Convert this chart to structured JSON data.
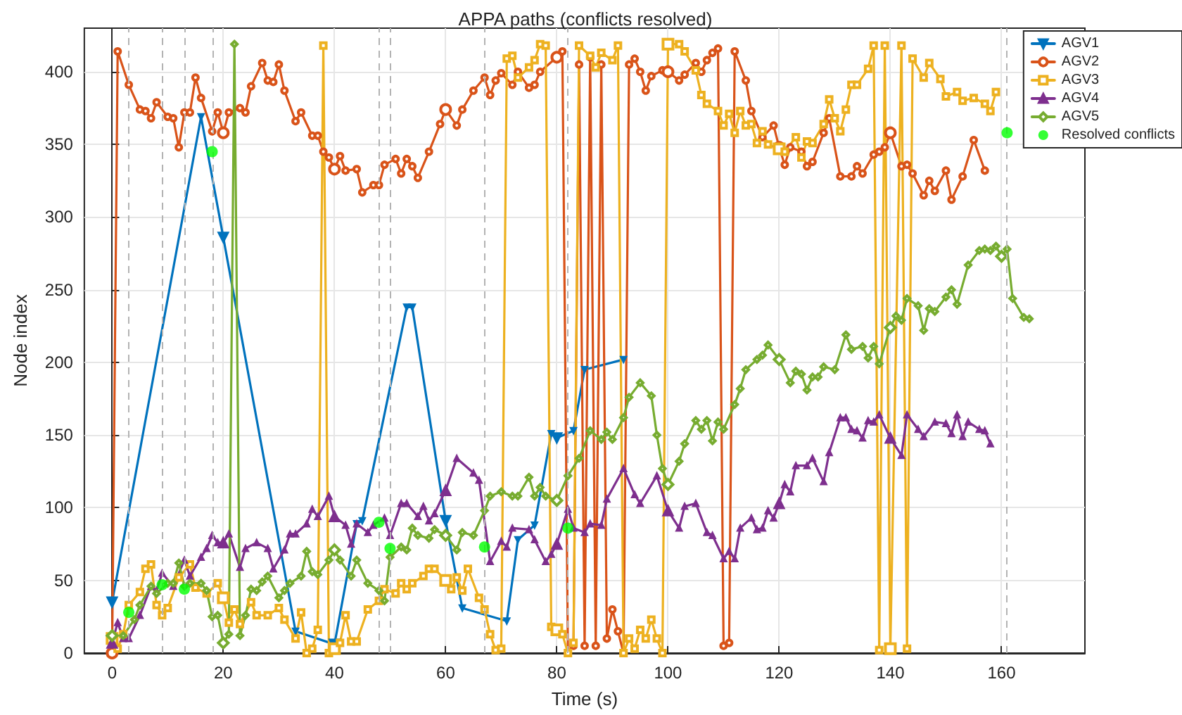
{
  "chart_data": {
    "type": "line",
    "title": "APPA paths (conflicts resolved)",
    "xlabel": "Time (s)",
    "ylabel": "Node index",
    "xlim": [
      -5,
      175
    ],
    "xticks": [
      0,
      20,
      40,
      60,
      80,
      100,
      120,
      140,
      160
    ],
    "ylim": [
      0,
      430
    ],
    "yticks": [
      0,
      50,
      100,
      150,
      200,
      250,
      300,
      350,
      400
    ],
    "grid": true,
    "legend": "top right",
    "line_style": "solid",
    "series": [
      {
        "name": "AGV1",
        "color": "#0072bd",
        "marker": "triangle-down",
        "x": [
          0,
          16,
          20,
          33,
          40,
          44,
          45,
          53,
          54,
          60,
          63,
          71,
          73,
          76,
          79,
          80,
          83,
          85,
          92
        ],
        "values": [
          35,
          369,
          286,
          15,
          6,
          89,
          91,
          238,
          238,
          91,
          31,
          22,
          78,
          88,
          151,
          148,
          153,
          195,
          202
        ]
      },
      {
        "name": "AGV2",
        "color": "#d95319",
        "marker": "circle",
        "x": [
          0,
          1,
          3,
          5,
          6,
          7,
          8,
          10,
          11,
          12,
          13,
          14,
          15,
          16,
          18,
          19,
          20,
          21,
          23,
          24,
          25,
          27,
          28,
          29,
          30,
          31,
          33,
          34,
          36,
          37,
          38,
          39,
          40,
          41,
          42,
          44,
          45,
          47,
          48,
          49,
          51,
          52,
          53,
          54,
          55,
          57,
          59,
          60,
          62,
          63,
          65,
          67,
          68,
          69,
          70,
          72,
          73,
          75,
          76,
          77,
          80,
          81,
          82,
          83,
          84,
          85,
          86,
          87,
          88,
          89,
          90,
          91,
          92,
          93,
          94,
          95,
          96,
          97,
          99,
          100,
          102,
          103,
          105,
          106,
          107,
          108,
          109,
          110,
          111,
          112,
          114,
          115,
          117,
          119,
          120,
          121,
          122,
          124,
          125,
          126,
          128,
          129,
          131,
          133,
          134,
          135,
          137,
          138,
          139,
          140,
          142,
          143,
          144,
          146,
          147,
          148,
          150,
          151,
          153,
          155,
          157
        ],
        "values": [
          0,
          414,
          391,
          374,
          373,
          368,
          379,
          369,
          368,
          348,
          372,
          372,
          396,
          382,
          359,
          372,
          358,
          372,
          375,
          372,
          390,
          406,
          394,
          393,
          405,
          387,
          366,
          372,
          356,
          356,
          345,
          341,
          333,
          342,
          332,
          333,
          317,
          322,
          322,
          336,
          340,
          330,
          340,
          335,
          327,
          345,
          364,
          374,
          363,
          374,
          387,
          396,
          384,
          394,
          399,
          391,
          400,
          389,
          391,
          400,
          410,
          414,
          0,
          5,
          405,
          5,
          410,
          5,
          405,
          10,
          30,
          15,
          0,
          405,
          409,
          400,
          387,
          397,
          401,
          400,
          394,
          398,
          406,
          400,
          408,
          413,
          416,
          5,
          7,
          414,
          394,
          373,
          355,
          363,
          348,
          336,
          348,
          345,
          335,
          338,
          358,
          368,
          328,
          328,
          335,
          330,
          343,
          345,
          348,
          358,
          335,
          336,
          330,
          315,
          325,
          318,
          332,
          312,
          328,
          353,
          332
        ]
      },
      {
        "name": "AGV3",
        "color": "#edb120",
        "marker": "square",
        "x": [
          0,
          1,
          2,
          3,
          5,
          6,
          7,
          8,
          9,
          10,
          12,
          14,
          15,
          17,
          19,
          20,
          21,
          22,
          23,
          25,
          26,
          28,
          30,
          31,
          33,
          34,
          35,
          36,
          37,
          38,
          39,
          40,
          41,
          42,
          43,
          44,
          46,
          48,
          49,
          51,
          52,
          53,
          54,
          56,
          57,
          58,
          60,
          61,
          62,
          63,
          64,
          66,
          67,
          68,
          69,
          70,
          71,
          72,
          73,
          75,
          76,
          77,
          78,
          79,
          80,
          81,
          82,
          83,
          84,
          86,
          87,
          88,
          90,
          91,
          92,
          93,
          94,
          95,
          96,
          97,
          98,
          99,
          100,
          102,
          103,
          105,
          106,
          107,
          109,
          110,
          111,
          112,
          113,
          114,
          115,
          116,
          117,
          118,
          120,
          121,
          123,
          124,
          125,
          126,
          128,
          129,
          130,
          131,
          132,
          133,
          134,
          136,
          137,
          138,
          139,
          140,
          142,
          143,
          144,
          146,
          147,
          149,
          150,
          152,
          153,
          155,
          157,
          158,
          159
        ],
        "values": [
          10,
          3,
          13,
          33,
          42,
          58,
          61,
          33,
          26,
          31,
          52,
          61,
          45,
          41,
          48,
          38,
          21,
          30,
          20,
          35,
          26,
          26,
          31,
          23,
          10,
          28,
          0,
          3,
          16,
          418,
          0,
          3,
          7,
          26,
          8,
          8,
          30,
          36,
          44,
          41,
          48,
          44,
          48,
          53,
          58,
          58,
          50,
          44,
          52,
          43,
          58,
          38,
          30,
          13,
          2,
          3,
          409,
          411,
          396,
          403,
          408,
          419,
          418,
          18,
          16,
          13,
          0,
          7,
          418,
          411,
          403,
          413,
          408,
          418,
          0,
          10,
          3,
          16,
          10,
          23,
          10,
          0,
          419,
          419,
          414,
          401,
          384,
          378,
          373,
          363,
          371,
          358,
          373,
          363,
          364,
          351,
          359,
          350,
          347,
          345,
          355,
          341,
          352,
          351,
          364,
          381,
          368,
          359,
          374,
          391,
          391,
          402,
          418,
          2,
          418,
          3,
          418,
          3,
          409,
          396,
          406,
          395,
          383,
          386,
          380,
          382,
          378,
          373,
          386
        ]
      },
      {
        "name": "AGV4",
        "color": "#7e2f8e",
        "marker": "triangle",
        "x": [
          0,
          1,
          2,
          3,
          5,
          7,
          8,
          9,
          11,
          13,
          14,
          16,
          17,
          18,
          19,
          20,
          21,
          23,
          24,
          26,
          28,
          29,
          31,
          32,
          33,
          35,
          36,
          37,
          39,
          40,
          42,
          43,
          44,
          46,
          47,
          49,
          50,
          52,
          53,
          55,
          56,
          57,
          58,
          60,
          62,
          65,
          66,
          68,
          70,
          71,
          72,
          75,
          76,
          78,
          79,
          80,
          82,
          83,
          85,
          86,
          88,
          89,
          92,
          94,
          95,
          98,
          100,
          102,
          103,
          105,
          107,
          108,
          110,
          111,
          112,
          113,
          115,
          116,
          117,
          118,
          119,
          120,
          121,
          122,
          123,
          125,
          126,
          128,
          129,
          131,
          132,
          133,
          134,
          135,
          136,
          137,
          138,
          140,
          142,
          143,
          145,
          146,
          148,
          150,
          151,
          152,
          153,
          154,
          156,
          157,
          158
        ],
        "values": [
          7,
          21,
          10,
          10,
          26,
          46,
          43,
          55,
          46,
          64,
          53,
          66,
          72,
          81,
          76,
          76,
          82,
          59,
          72,
          76,
          72,
          58,
          71,
          82,
          82,
          89,
          99,
          94,
          108,
          94,
          88,
          75,
          89,
          83,
          88,
          93,
          81,
          103,
          103,
          94,
          101,
          91,
          96,
          112,
          134,
          124,
          119,
          63,
          77,
          73,
          86,
          85,
          78,
          63,
          68,
          75,
          99,
          86,
          83,
          89,
          88,
          106,
          127,
          109,
          103,
          122,
          98,
          86,
          101,
          103,
          83,
          81,
          65,
          70,
          65,
          86,
          93,
          85,
          86,
          98,
          93,
          103,
          116,
          111,
          129,
          129,
          134,
          118,
          138,
          162,
          162,
          154,
          153,
          148,
          160,
          159,
          164,
          148,
          136,
          164,
          154,
          149,
          159,
          158,
          151,
          164,
          149,
          159,
          154,
          153,
          144
        ]
      },
      {
        "name": "AGV5",
        "color": "#77ac30",
        "marker": "diamond",
        "x": [
          0,
          2,
          4,
          5,
          7,
          8,
          10,
          11,
          12,
          13,
          14,
          16,
          17,
          18,
          19,
          20,
          21,
          22,
          23,
          24,
          25,
          26,
          27,
          28,
          30,
          31,
          32,
          34,
          35,
          36,
          37,
          39,
          40,
          41,
          43,
          44,
          46,
          48,
          49,
          50,
          52,
          53,
          54,
          55,
          57,
          58,
          60,
          62,
          63,
          65,
          67,
          68,
          70,
          72,
          73,
          75,
          76,
          77,
          78,
          80,
          82,
          84,
          86,
          88,
          89,
          90,
          92,
          93,
          95,
          97,
          98,
          99,
          100,
          102,
          103,
          105,
          106,
          107,
          108,
          109,
          110,
          112,
          113,
          114,
          116,
          117,
          118,
          120,
          122,
          123,
          124,
          125,
          126,
          127,
          128,
          130,
          132,
          133,
          135,
          136,
          137,
          138,
          140,
          141,
          142,
          143,
          145,
          146,
          147,
          148,
          150,
          151,
          152,
          154,
          156,
          157,
          158,
          159,
          160,
          161,
          162,
          164,
          165
        ],
        "values": [
          12,
          12,
          23,
          33,
          46,
          41,
          48,
          48,
          62,
          46,
          48,
          48,
          43,
          25,
          26,
          7,
          13,
          419,
          12,
          26,
          44,
          43,
          49,
          53,
          38,
          43,
          48,
          53,
          70,
          56,
          54,
          64,
          71,
          64,
          53,
          64,
          48,
          43,
          36,
          66,
          73,
          71,
          86,
          81,
          79,
          85,
          81,
          71,
          83,
          81,
          98,
          108,
          111,
          108,
          108,
          121,
          108,
          114,
          108,
          105,
          122,
          134,
          153,
          147,
          152,
          147,
          162,
          176,
          186,
          177,
          150,
          127,
          116,
          132,
          144,
          160,
          154,
          160,
          146,
          159,
          154,
          171,
          182,
          195,
          202,
          205,
          212,
          202,
          186,
          194,
          192,
          181,
          190,
          190,
          197,
          195,
          219,
          209,
          211,
          203,
          211,
          199,
          224,
          232,
          229,
          244,
          239,
          222,
          237,
          235,
          245,
          250,
          240,
          267,
          277,
          278,
          277,
          280,
          273,
          278,
          244,
          231,
          230
        ]
      },
      {
        "name": "Resolved conflicts",
        "type": "scatter",
        "color": "#00ff00",
        "marker": "circle",
        "x": [
          3,
          9,
          13,
          18,
          48,
          50,
          67,
          82,
          161
        ],
        "values": [
          28,
          47,
          44,
          345,
          90,
          72,
          73,
          86,
          358
        ]
      }
    ],
    "ref_lines": [
      {
        "axis": "x",
        "value": 3,
        "color": "#b3b3b3",
        "line_style": "dashed"
      },
      {
        "axis": "x",
        "value": 9,
        "color": "#b3b3b3",
        "line_style": "dashed"
      },
      {
        "axis": "x",
        "value": 13,
        "color": "#b3b3b3",
        "line_style": "dashed"
      },
      {
        "axis": "x",
        "value": 18,
        "color": "#b3b3b3",
        "line_style": "dashed"
      },
      {
        "axis": "x",
        "value": 48,
        "color": "#b3b3b3",
        "line_style": "dashed"
      },
      {
        "axis": "x",
        "value": 50,
        "color": "#b3b3b3",
        "line_style": "dashed"
      },
      {
        "axis": "x",
        "value": 67,
        "color": "#b3b3b3",
        "line_style": "dashed"
      },
      {
        "axis": "x",
        "value": 82,
        "color": "#b3b3b3",
        "line_style": "dashed"
      },
      {
        "axis": "x",
        "value": 161,
        "color": "#b3b3b3",
        "line_style": "dashed"
      }
    ]
  }
}
